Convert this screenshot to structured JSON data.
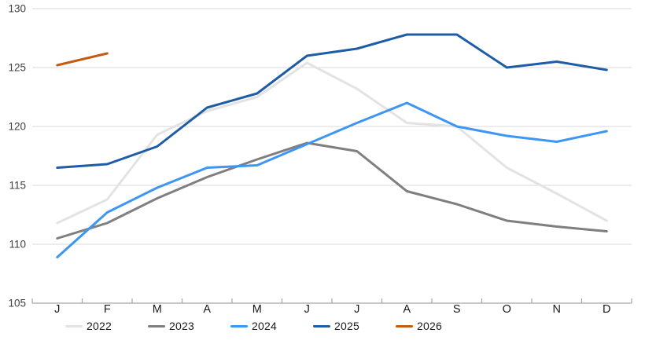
{
  "chart_data": {
    "type": "line",
    "title": "",
    "xlabel": "",
    "ylabel": "",
    "x_categories": [
      "J",
      "F",
      "M",
      "A",
      "M",
      "J",
      "J",
      "A",
      "S",
      "O",
      "N",
      "D"
    ],
    "y_ticks": [
      105,
      110,
      115,
      120,
      125,
      130
    ],
    "ylim": [
      105,
      130
    ],
    "grid": "horizontal-only",
    "legend_position": "bottom",
    "series": [
      {
        "name": "2022",
        "color": "#E3E3E3",
        "values": [
          111.8,
          113.8,
          119.3,
          121.3,
          122.5,
          125.4,
          123.2,
          120.3,
          120.0,
          116.5,
          114.3,
          112.0
        ]
      },
      {
        "name": "2023",
        "color": "#7F7F7F",
        "values": [
          110.5,
          111.8,
          113.9,
          115.7,
          117.2,
          118.6,
          117.9,
          114.5,
          113.4,
          112.0,
          111.5,
          111.1
        ]
      },
      {
        "name": "2024",
        "color": "#3E96F4",
        "values": [
          108.9,
          112.7,
          114.8,
          116.5,
          116.7,
          118.5,
          120.3,
          122.0,
          120.0,
          119.2,
          118.7,
          119.6
        ]
      },
      {
        "name": "2025",
        "color": "#1E5CA8",
        "values": [
          116.5,
          116.8,
          118.3,
          121.6,
          122.8,
          126.0,
          126.6,
          127.8,
          127.8,
          125.0,
          125.5,
          124.8
        ]
      },
      {
        "name": "2026",
        "color": "#C55A11",
        "values": [
          125.2,
          126.2
        ]
      }
    ]
  },
  "style_colors": {
    "gridline": "#D9D9D9",
    "axis_line": "#A6A6A6",
    "y_tick_label": "#404040",
    "x_tick_label": "#1a1a1a",
    "background": "#ffffff"
  }
}
